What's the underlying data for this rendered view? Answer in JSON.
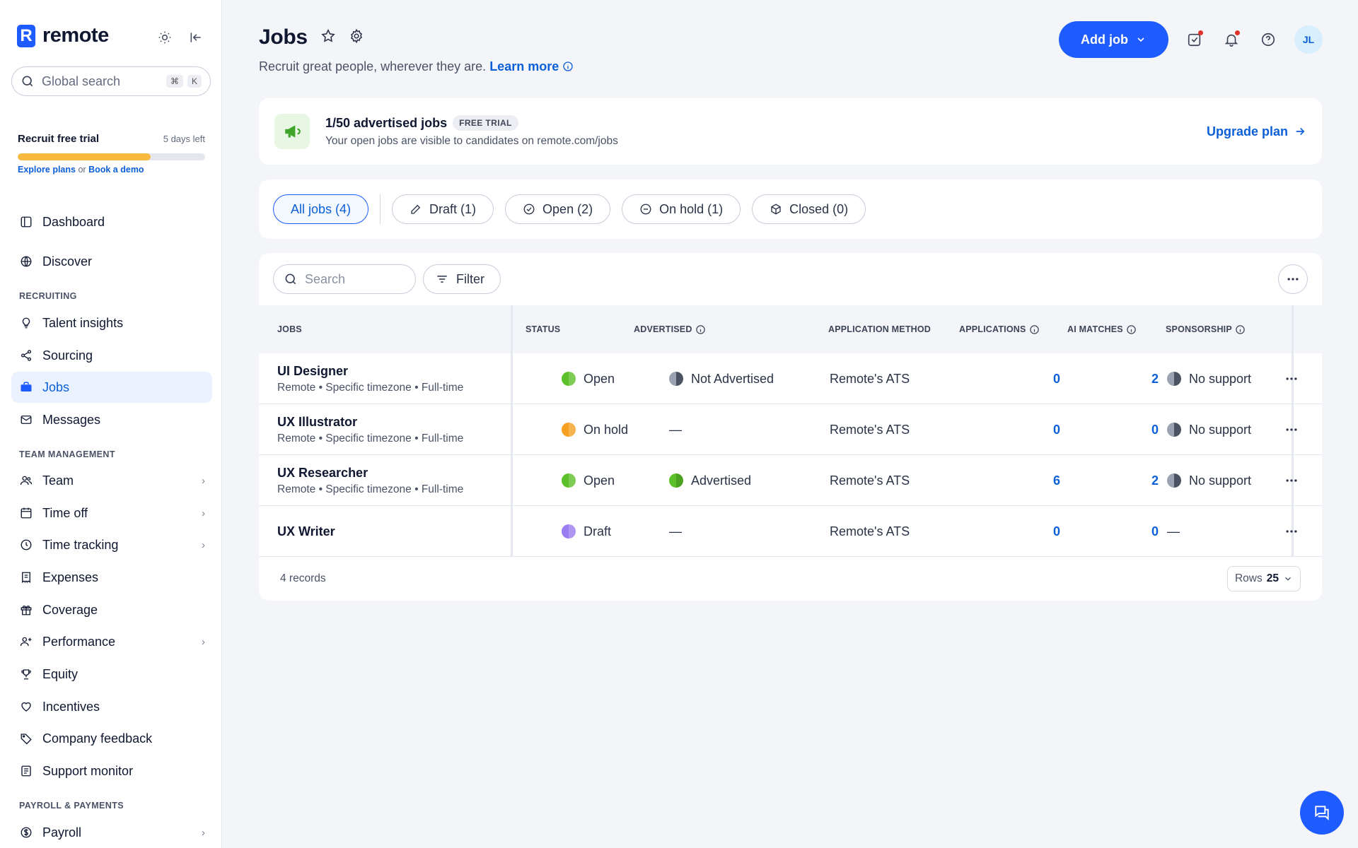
{
  "brand": {
    "name": "remote",
    "mark": "R"
  },
  "sidebar": {
    "search_placeholder": "Global search",
    "search_keys": [
      "⌘",
      "K"
    ],
    "trial": {
      "title": "Recruit free trial",
      "days_left": "5 days left",
      "progress": 0.71,
      "explore_label": "Explore plans",
      "or": "or",
      "demo_label": "Book a demo"
    },
    "items_top": [
      {
        "label": "Dashboard",
        "icon": "dashboard-icon"
      },
      {
        "label": "Discover",
        "icon": "globe-icon"
      }
    ],
    "section_recruiting": "RECRUITING",
    "recruiting": [
      {
        "label": "Talent insights",
        "icon": "lightbulb-icon"
      },
      {
        "label": "Sourcing",
        "icon": "share-icon"
      },
      {
        "label": "Jobs",
        "icon": "briefcase-icon",
        "active": true
      },
      {
        "label": "Messages",
        "icon": "mail-icon"
      }
    ],
    "section_team": "TEAM MANAGEMENT",
    "team": [
      {
        "label": "Team",
        "icon": "users-icon",
        "chevron": true
      },
      {
        "label": "Time off",
        "icon": "calendar-icon",
        "chevron": true
      },
      {
        "label": "Time tracking",
        "icon": "clock-icon",
        "chevron": true
      },
      {
        "label": "Expenses",
        "icon": "receipt-icon"
      },
      {
        "label": "Coverage",
        "icon": "gift-icon"
      },
      {
        "label": "Performance",
        "icon": "user-plus-icon",
        "chevron": true
      },
      {
        "label": "Equity",
        "icon": "trophy-icon"
      },
      {
        "label": "Incentives",
        "icon": "heart-icon"
      },
      {
        "label": "Company feedback",
        "icon": "tag-icon"
      },
      {
        "label": "Support monitor",
        "icon": "monitor-icon"
      }
    ],
    "section_payroll": "PAYROLL & PAYMENTS",
    "payroll": [
      {
        "label": "Payroll",
        "icon": "dollar-icon",
        "chevron": true
      }
    ]
  },
  "header": {
    "title": "Jobs",
    "subtitle": "Recruit great people, wherever they are.",
    "learn_more": "Learn more",
    "add_job": "Add job",
    "avatar_initials": "JL"
  },
  "promo": {
    "title": "1/50 advertised jobs",
    "badge": "FREE TRIAL",
    "subtitle": "Your open jobs are visible to candidates on remote.com/jobs",
    "upgrade": "Upgrade plan"
  },
  "filters": [
    {
      "label": "All jobs (4)",
      "active": true
    },
    {
      "label": "Draft (1)",
      "icon": "pencil-icon"
    },
    {
      "label": "Open (2)",
      "icon": "check-circle-icon"
    },
    {
      "label": "On hold (1)",
      "icon": "minus-circle-icon"
    },
    {
      "label": "Closed (0)",
      "icon": "box-icon"
    }
  ],
  "table": {
    "search_placeholder": "Search",
    "filter_label": "Filter",
    "columns": [
      "JOBS",
      "STATUS",
      "ADVERTISED",
      "APPLICATION METHOD",
      "APPLICATIONS",
      "AI MATCHES",
      "SPONSORSHIP"
    ],
    "rows": [
      {
        "title": "UI Designer",
        "meta": "Remote • Specific timezone • Full-time",
        "status": "Open",
        "status_color": "#5cc02a",
        "advertised": "Not Advertised",
        "advertised_dot": "half-grey",
        "method": "Remote's ATS",
        "applications": "0",
        "ai_matches": "2",
        "sponsorship": "No support",
        "sponsorship_dot": true
      },
      {
        "title": "UX Illustrator",
        "meta": "Remote • Specific timezone • Full-time",
        "status": "On hold",
        "status_color": "#f5a020",
        "advertised": "—",
        "advertised_dot": "",
        "method": "Remote's ATS",
        "applications": "0",
        "ai_matches": "0",
        "sponsorship": "No support",
        "sponsorship_dot": true
      },
      {
        "title": "UX Researcher",
        "meta": "Remote • Specific timezone • Full-time",
        "status": "Open",
        "status_color": "#5cc02a",
        "advertised": "Advertised",
        "advertised_dot": "green",
        "method": "Remote's ATS",
        "applications": "6",
        "ai_matches": "2",
        "sponsorship": "No support",
        "sponsorship_dot": true
      },
      {
        "title": "UX Writer",
        "meta": "",
        "status": "Draft",
        "status_color": "#9b7cf0",
        "advertised": "—",
        "advertised_dot": "",
        "method": "Remote's ATS",
        "applications": "0",
        "ai_matches": "0",
        "sponsorship": "—",
        "sponsorship_dot": false
      }
    ],
    "records": "4 records",
    "rows_label": "Rows",
    "rows_value": "25"
  },
  "colors": {
    "accent": "#1f5cff",
    "link": "#0b5fd9",
    "trial_bar": "#f7b940"
  }
}
